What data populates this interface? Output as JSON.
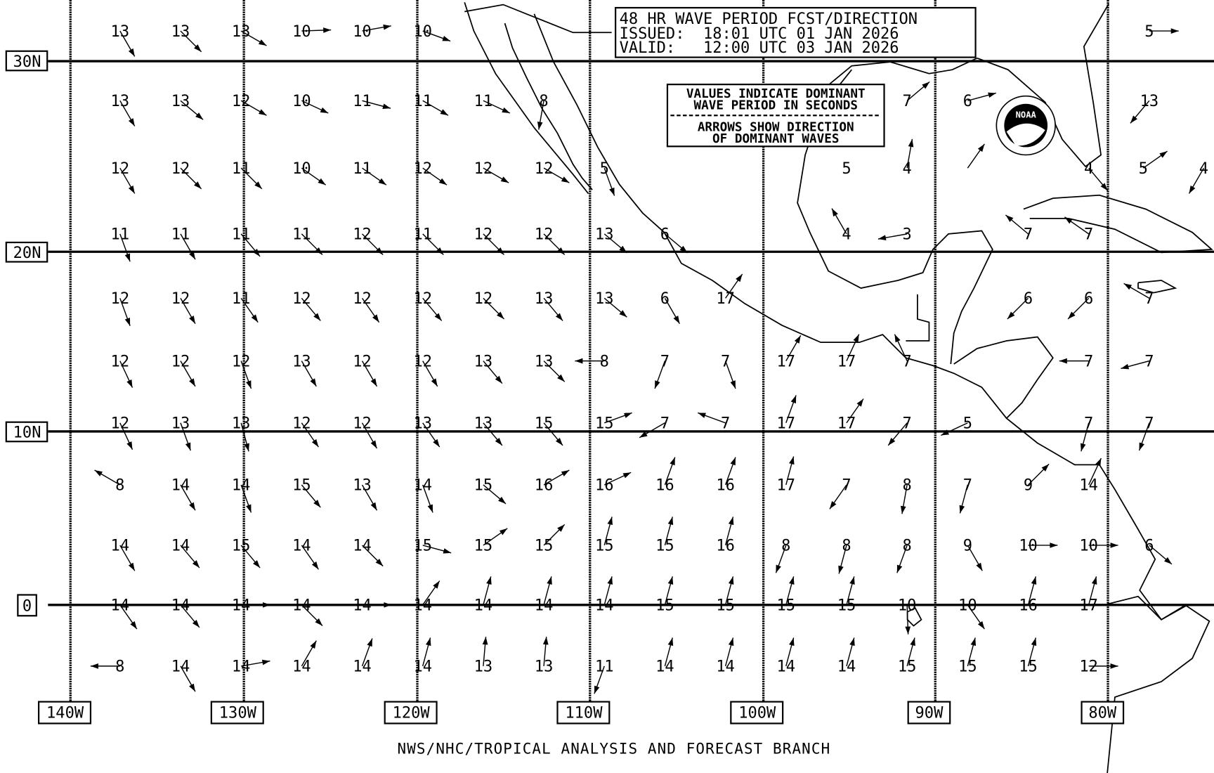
{
  "title_box": {
    "line1": "48 HR WAVE PERIOD FCST/DIRECTION",
    "line2": "ISSUED:  18:01 UTC 01 JAN 2026",
    "line3": "VALID:   12:00 UTC 03 JAN 2026"
  },
  "legend": {
    "line1": "VALUES INDICATE DOMINANT",
    "line2": "WAVE PERIOD IN SECONDS",
    "line3": "ARROWS SHOW DIRECTION",
    "line4": "OF DOMINANT WAVES"
  },
  "credit": "NWS/NHC/TROPICAL ANALYSIS AND FORECAST BRANCH",
  "logo_text": "NOAA",
  "lat_labels": [
    "30N",
    "20N",
    "10N",
    "0"
  ],
  "lon_labels": [
    "140W",
    "130W",
    "120W",
    "110W",
    "100W",
    "90W",
    "80W"
  ],
  "wave_grid_note_units": "seconds",
  "wave_grid": [
    [
      {
        "c": 0,
        "v": "13",
        "dir": 150
      },
      {
        "c": 1,
        "v": "13",
        "dir": 135
      },
      {
        "c": 2,
        "v": "13",
        "dir": 120
      },
      {
        "c": 3,
        "v": "10",
        "dir": 88
      },
      {
        "c": 4,
        "v": "10",
        "dir": 80
      },
      {
        "c": 5,
        "v": "10",
        "dir": 110
      },
      {
        "c": 17,
        "v": "5",
        "dir": 90
      }
    ],
    [
      {
        "c": 0,
        "v": "13",
        "dir": 150
      },
      {
        "c": 1,
        "v": "13",
        "dir": 130
      },
      {
        "c": 2,
        "v": "12",
        "dir": 120
      },
      {
        "c": 3,
        "v": "10",
        "dir": 115
      },
      {
        "c": 4,
        "v": "11",
        "dir": 105
      },
      {
        "c": 5,
        "v": "11",
        "dir": 120
      },
      {
        "c": 6,
        "v": "11",
        "dir": 115
      },
      {
        "c": 7,
        "v": "8",
        "dir": 190
      },
      {
        "c": 13,
        "v": "7",
        "dir": 50
      },
      {
        "c": 14,
        "v": "6",
        "dir": 75
      },
      {
        "c": 17,
        "v": "13",
        "dir": 220
      }
    ],
    [
      {
        "c": 0,
        "v": "12",
        "dir": 150
      },
      {
        "c": 1,
        "v": "12",
        "dir": 135
      },
      {
        "c": 2,
        "v": "11",
        "dir": 135
      },
      {
        "c": 3,
        "v": "10",
        "dir": 125
      },
      {
        "c": 4,
        "v": "11",
        "dir": 125
      },
      {
        "c": 5,
        "v": "12",
        "dir": 125
      },
      {
        "c": 6,
        "v": "12",
        "dir": 120
      },
      {
        "c": 7,
        "v": "12",
        "dir": 120
      },
      {
        "c": 8,
        "v": "5",
        "dir": 160
      },
      {
        "c": 12,
        "v": "5",
        "dir": null
      },
      {
        "c": 13,
        "v": "4",
        "dir": 10
      },
      {
        "c": 14,
        "v": "",
        "dir": 35
      },
      {
        "c": 16,
        "v": "4",
        "dir": 140
      },
      {
        "c": 16.9,
        "v": "5",
        "dir": 55
      },
      {
        "c": 17.9,
        "v": "4",
        "dir": 210
      }
    ],
    [
      {
        "c": 0,
        "v": "11",
        "dir": 160
      },
      {
        "c": 1,
        "v": "11",
        "dir": 150
      },
      {
        "c": 2,
        "v": "11",
        "dir": 140
      },
      {
        "c": 3,
        "v": "11",
        "dir": 135
      },
      {
        "c": 4,
        "v": "12",
        "dir": 135
      },
      {
        "c": 5,
        "v": "11",
        "dir": 135
      },
      {
        "c": 6,
        "v": "12",
        "dir": 135
      },
      {
        "c": 7,
        "v": "12",
        "dir": 135
      },
      {
        "c": 8,
        "v": "13",
        "dir": 130
      },
      {
        "c": 9,
        "v": "6",
        "dir": 130
      },
      {
        "c": 12,
        "v": "4",
        "dir": 330
      },
      {
        "c": 13,
        "v": "3",
        "dir": 260
      },
      {
        "c": 15,
        "v": "7",
        "dir": 310
      },
      {
        "c": 16,
        "v": "7",
        "dir": 305
      }
    ],
    [
      {
        "c": 0,
        "v": "12",
        "dir": 160
      },
      {
        "c": 1,
        "v": "12",
        "dir": 150
      },
      {
        "c": 2,
        "v": "11",
        "dir": 145
      },
      {
        "c": 3,
        "v": "12",
        "dir": 140
      },
      {
        "c": 4,
        "v": "12",
        "dir": 145
      },
      {
        "c": 5,
        "v": "12",
        "dir": 140
      },
      {
        "c": 6,
        "v": "12",
        "dir": 135
      },
      {
        "c": 7,
        "v": "13",
        "dir": 140
      },
      {
        "c": 8,
        "v": "13",
        "dir": 130
      },
      {
        "c": 9,
        "v": "6",
        "dir": 150
      },
      {
        "c": 10,
        "v": "17",
        "dir": 35
      },
      {
        "c": 15,
        "v": "6",
        "dir": 225
      },
      {
        "c": 16,
        "v": "6",
        "dir": 225
      },
      {
        "c": 17,
        "v": "7",
        "dir": 300
      }
    ],
    [
      {
        "c": 0,
        "v": "12",
        "dir": 155
      },
      {
        "c": 1,
        "v": "12",
        "dir": 150
      },
      {
        "c": 2,
        "v": "12",
        "dir": 160
      },
      {
        "c": 3,
        "v": "13",
        "dir": 150
      },
      {
        "c": 4,
        "v": "12",
        "dir": 150
      },
      {
        "c": 5,
        "v": "12",
        "dir": 150
      },
      {
        "c": 6,
        "v": "13",
        "dir": 140
      },
      {
        "c": 7,
        "v": "13",
        "dir": 135
      },
      {
        "c": 8,
        "v": "8",
        "dir": 270
      },
      {
        "c": 9,
        "v": "7",
        "dir": 200
      },
      {
        "c": 10,
        "v": "7",
        "dir": 160
      },
      {
        "c": 11,
        "v": "17",
        "dir": 30
      },
      {
        "c": 12,
        "v": "17",
        "dir": 25
      },
      {
        "c": 13,
        "v": "7",
        "dir": 335
      },
      {
        "c": 16,
        "v": "7",
        "dir": 270
      },
      {
        "c": 17,
        "v": "7",
        "dir": 255
      }
    ],
    [
      {
        "c": 0,
        "v": "12",
        "dir": 155
      },
      {
        "c": 1,
        "v": "13",
        "dir": 160
      },
      {
        "c": 2,
        "v": "13",
        "dir": 165
      },
      {
        "c": 3,
        "v": "12",
        "dir": 145
      },
      {
        "c": 4,
        "v": "12",
        "dir": 150
      },
      {
        "c": 5,
        "v": "13",
        "dir": 145
      },
      {
        "c": 6,
        "v": "13",
        "dir": 140
      },
      {
        "c": 7,
        "v": "15",
        "dir": 140
      },
      {
        "c": 8,
        "v": "15",
        "dir": 70
      },
      {
        "c": 9,
        "v": "7",
        "dir": 240
      },
      {
        "c": 10,
        "v": "7",
        "dir": 290
      },
      {
        "c": 11,
        "v": "17",
        "dir": 20
      },
      {
        "c": 12,
        "v": "17",
        "dir": 35
      },
      {
        "c": 13,
        "v": "7",
        "dir": 220
      },
      {
        "c": 14,
        "v": "5",
        "dir": 245
      },
      {
        "c": 16,
        "v": "7",
        "dir": 195
      },
      {
        "c": 17,
        "v": "7",
        "dir": 200
      }
    ],
    [
      {
        "c": 0,
        "v": "8",
        "dir": 300
      },
      {
        "c": 1,
        "v": "14",
        "dir": 150
      },
      {
        "c": 2,
        "v": "14",
        "dir": 160
      },
      {
        "c": 3,
        "v": "15",
        "dir": 140
      },
      {
        "c": 4,
        "v": "13",
        "dir": 150
      },
      {
        "c": 5,
        "v": "14",
        "dir": 160
      },
      {
        "c": 6,
        "v": "15",
        "dir": 130
      },
      {
        "c": 7,
        "v": "16",
        "dir": 60
      },
      {
        "c": 8,
        "v": "16",
        "dir": 65
      },
      {
        "c": 9,
        "v": "16",
        "dir": 20
      },
      {
        "c": 10,
        "v": "16",
        "dir": 20
      },
      {
        "c": 11,
        "v": "17",
        "dir": 15
      },
      {
        "c": 12,
        "v": "7",
        "dir": 215
      },
      {
        "c": 13,
        "v": "8",
        "dir": 190
      },
      {
        "c": 14,
        "v": "7",
        "dir": 195
      },
      {
        "c": 15,
        "v": "9",
        "dir": 45
      },
      {
        "c": 16,
        "v": "14",
        "dir": 25
      }
    ],
    [
      {
        "c": 0,
        "v": "14",
        "dir": 150
      },
      {
        "c": 1,
        "v": "14",
        "dir": 140
      },
      {
        "c": 2,
        "v": "15",
        "dir": 140
      },
      {
        "c": 3,
        "v": "14",
        "dir": 145
      },
      {
        "c": 4,
        "v": "14",
        "dir": 135
      },
      {
        "c": 5,
        "v": "15",
        "dir": 105
      },
      {
        "c": 6,
        "v": "15",
        "dir": 55
      },
      {
        "c": 7,
        "v": "15",
        "dir": 45
      },
      {
        "c": 8,
        "v": "15",
        "dir": 15
      },
      {
        "c": 9,
        "v": "15",
        "dir": 15
      },
      {
        "c": 10,
        "v": "16",
        "dir": 15
      },
      {
        "c": 11,
        "v": "8",
        "dir": 200
      },
      {
        "c": 12,
        "v": "8",
        "dir": 195
      },
      {
        "c": 13,
        "v": "8",
        "dir": 200
      },
      {
        "c": 14,
        "v": "9",
        "dir": 150
      },
      {
        "c": 15,
        "v": "10",
        "dir": 90
      },
      {
        "c": 16,
        "v": "10",
        "dir": 90
      },
      {
        "c": 17,
        "v": "6",
        "dir": 130
      }
    ],
    [
      {
        "c": 0,
        "v": "14",
        "dir": 145
      },
      {
        "c": 1,
        "v": "14",
        "dir": 140
      },
      {
        "c": 2,
        "v": "14",
        "dir": 90
      },
      {
        "c": 3,
        "v": "14",
        "dir": 135
      },
      {
        "c": 4,
        "v": "14",
        "dir": 90
      },
      {
        "c": 5,
        "v": "14",
        "dir": 35
      },
      {
        "c": 6,
        "v": "14",
        "dir": 15
      },
      {
        "c": 7,
        "v": "14",
        "dir": 15
      },
      {
        "c": 8,
        "v": "14",
        "dir": 15
      },
      {
        "c": 9,
        "v": "15",
        "dir": 15
      },
      {
        "c": 10,
        "v": "15",
        "dir": 15
      },
      {
        "c": 11,
        "v": "15",
        "dir": 15
      },
      {
        "c": 12,
        "v": "15",
        "dir": 15
      },
      {
        "c": 13,
        "v": "10",
        "dir": 178
      },
      {
        "c": 14,
        "v": "10",
        "dir": 145
      },
      {
        "c": 15,
        "v": "16",
        "dir": 15
      },
      {
        "c": 16,
        "v": "17",
        "dir": 15
      }
    ],
    [
      {
        "c": 0,
        "v": "8",
        "dir": 270
      },
      {
        "c": 1,
        "v": "14",
        "dir": 150
      },
      {
        "c": 2,
        "v": "14",
        "dir": 80
      },
      {
        "c": 3,
        "v": "14",
        "dir": 30
      },
      {
        "c": 4,
        "v": "14",
        "dir": 20
      },
      {
        "c": 5,
        "v": "14",
        "dir": 15
      },
      {
        "c": 6,
        "v": "13",
        "dir": 5
      },
      {
        "c": 7,
        "v": "13",
        "dir": 5
      },
      {
        "c": 8,
        "v": "11",
        "dir": 200
      },
      {
        "c": 9,
        "v": "14",
        "dir": 15
      },
      {
        "c": 10,
        "v": "14",
        "dir": 15
      },
      {
        "c": 11,
        "v": "14",
        "dir": 15
      },
      {
        "c": 12,
        "v": "14",
        "dir": 15
      },
      {
        "c": 13,
        "v": "15",
        "dir": 15
      },
      {
        "c": 14,
        "v": "15",
        "dir": 15
      },
      {
        "c": 15,
        "v": "15",
        "dir": 15
      },
      {
        "c": 16,
        "v": "12",
        "dir": 90
      }
    ]
  ]
}
